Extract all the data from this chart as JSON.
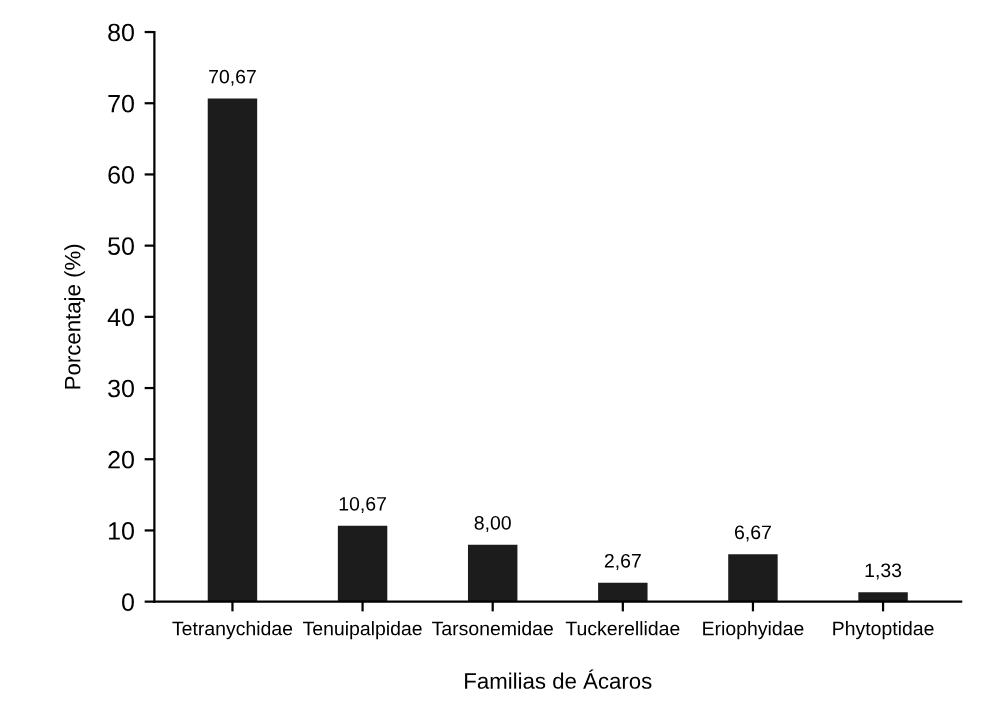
{
  "chart_data": {
    "type": "bar",
    "xlabel": "Familias de Ácaros",
    "ylabel": "Porcentaje (%)",
    "categories": [
      "Tetranychidae",
      "Tenuipalpidae",
      "Tarsonemidae",
      "Tuckerellidae",
      "Eriophyidae",
      "Phytoptidae"
    ],
    "values": [
      70.67,
      10.67,
      8.0,
      2.67,
      6.67,
      1.33
    ],
    "value_labels": [
      "70,67",
      "10,67",
      "8,00",
      "2,67",
      "6,67",
      "1,33"
    ],
    "color": "#1c1c1c",
    "ylim": [
      0,
      80
    ],
    "yticks": [
      0,
      10,
      20,
      30,
      40,
      50,
      60,
      70,
      80
    ],
    "grid": false,
    "legend": false
  }
}
